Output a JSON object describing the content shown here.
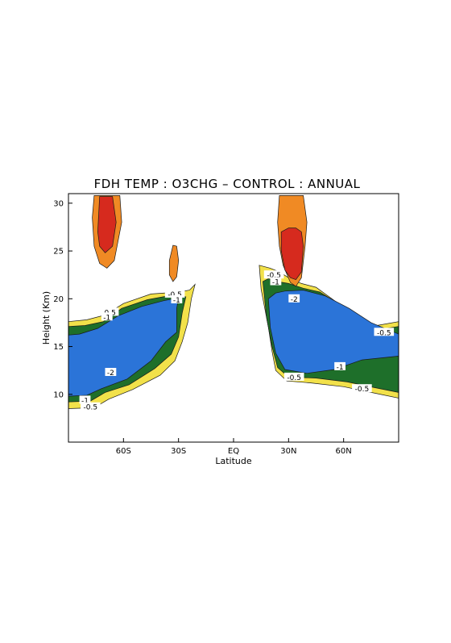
{
  "chart_data": {
    "type": "contour",
    "title": "FDH TEMP : O3CHG – CONTROL : ANNUAL",
    "xlabel": "Latitude",
    "ylabel": "Height (Km)",
    "xlim": [
      -90,
      90
    ],
    "ylim": [
      5,
      31
    ],
    "x_ticks": [
      {
        "value": -60,
        "label": "60S"
      },
      {
        "value": -30,
        "label": "30S"
      },
      {
        "value": 0,
        "label": "EQ"
      },
      {
        "value": 30,
        "label": "30N"
      },
      {
        "value": 60,
        "label": "60N"
      }
    ],
    "y_ticks": [
      {
        "value": 10,
        "label": "10"
      },
      {
        "value": 15,
        "label": "15"
      },
      {
        "value": 20,
        "label": "20"
      },
      {
        "value": 25,
        "label": "25"
      },
      {
        "value": 30,
        "label": "30"
      }
    ],
    "colors": {
      "yellow": "#f2e14a",
      "green": "#1e6f2a",
      "blue": "#2b74d8",
      "dark": "#0d1b2a",
      "orange": "#f08a24",
      "red": "#d62a1e",
      "contour": "#1a1a1a"
    },
    "regions": [
      {
        "name": "SH negative base",
        "level": -0.3,
        "color_key": "yellow",
        "points": [
          [
            -90,
            8.5
          ],
          [
            -76,
            8.6
          ],
          [
            -68,
            9.5
          ],
          [
            -55,
            10.5
          ],
          [
            -40,
            12
          ],
          [
            -32,
            13.5
          ],
          [
            -28,
            15.5
          ],
          [
            -25,
            17.5
          ],
          [
            -23,
            20
          ],
          [
            -21,
            21.5
          ],
          [
            -24,
            20.9
          ],
          [
            -30,
            20.7
          ],
          [
            -45,
            20.5
          ],
          [
            -60,
            19.5
          ],
          [
            -70,
            18.3
          ],
          [
            -80,
            17.8
          ],
          [
            -90,
            17.6
          ]
        ]
      },
      {
        "name": "SH -0.5",
        "level": -0.5,
        "color_key": "green",
        "points": [
          [
            -90,
            9.2
          ],
          [
            -78,
            9.3
          ],
          [
            -70,
            10.2
          ],
          [
            -57,
            11
          ],
          [
            -43,
            12.7
          ],
          [
            -34,
            14.2
          ],
          [
            -30,
            16
          ],
          [
            -28,
            18.5
          ],
          [
            -26,
            20.2
          ],
          [
            -33,
            20.4
          ],
          [
            -47,
            19.9
          ],
          [
            -61,
            19
          ],
          [
            -71,
            17.6
          ],
          [
            -81,
            17.2
          ],
          [
            -90,
            17.1
          ]
        ]
      },
      {
        "name": "SH -1",
        "level": -1,
        "color_key": "blue",
        "points": [
          [
            -90,
            9.8
          ],
          [
            -80,
            9.9
          ],
          [
            -72,
            10.6
          ],
          [
            -58,
            11.6
          ],
          [
            -45,
            13.5
          ],
          [
            -37,
            15.5
          ],
          [
            -31,
            16.5
          ],
          [
            -31,
            19
          ],
          [
            -30,
            20.1
          ],
          [
            -38,
            19.8
          ],
          [
            -50,
            19.2
          ],
          [
            -63,
            18.2
          ],
          [
            -74,
            16.9
          ],
          [
            -84,
            16.3
          ],
          [
            -90,
            16.2
          ]
        ]
      },
      {
        "name": "NH negative base",
        "level": -0.3,
        "color_key": "yellow",
        "points": [
          [
            14,
            23.5
          ],
          [
            15,
            21
          ],
          [
            19,
            17
          ],
          [
            21,
            14.5
          ],
          [
            23,
            12.5
          ],
          [
            29,
            11.4
          ],
          [
            42,
            11.2
          ],
          [
            60,
            10.8
          ],
          [
            75,
            10.2
          ],
          [
            90,
            9.6
          ],
          [
            90,
            17.6
          ],
          [
            78,
            17.2
          ],
          [
            65,
            18.2
          ],
          [
            55,
            19.8
          ],
          [
            45,
            21.2
          ],
          [
            37,
            21.6
          ],
          [
            30,
            22.2
          ],
          [
            25,
            22.8
          ],
          [
            20,
            23.2
          ]
        ]
      },
      {
        "name": "NH -0.5",
        "level": -0.5,
        "color_key": "green",
        "points": [
          [
            16,
            21.8
          ],
          [
            18,
            18
          ],
          [
            21,
            15
          ],
          [
            24,
            12.8
          ],
          [
            30,
            11.8
          ],
          [
            45,
            11.7
          ],
          [
            62,
            11.3
          ],
          [
            77,
            10.7
          ],
          [
            90,
            10.2
          ],
          [
            90,
            17.1
          ],
          [
            80,
            16.8
          ],
          [
            67,
            17.8
          ],
          [
            57,
            19.5
          ],
          [
            47,
            20.7
          ],
          [
            38,
            21.1
          ],
          [
            30,
            21.6
          ],
          [
            24,
            21.8
          ],
          [
            19,
            22.1
          ]
        ]
      },
      {
        "name": "NH -1",
        "level": -1,
        "color_key": "blue",
        "points": [
          [
            19,
            20
          ],
          [
            20,
            17
          ],
          [
            23,
            14.3
          ],
          [
            28,
            12.6
          ],
          [
            40,
            12.2
          ],
          [
            55,
            12.6
          ],
          [
            70,
            13.6
          ],
          [
            90,
            14
          ],
          [
            90,
            16.3
          ],
          [
            75,
            17.5
          ],
          [
            63,
            19
          ],
          [
            50,
            20.3
          ],
          [
            38,
            20.9
          ],
          [
            28,
            20.8
          ],
          [
            23,
            20.6
          ]
        ]
      },
      {
        "name": "SH upper warm",
        "level": 0.5,
        "color_key": "orange",
        "points": [
          [
            -77,
            28.5
          ],
          [
            -76,
            30.8
          ],
          [
            -62,
            30.8
          ],
          [
            -61,
            28
          ],
          [
            -63,
            26
          ],
          [
            -65,
            24
          ],
          [
            -69,
            23.2
          ],
          [
            -73,
            23.7
          ],
          [
            -76,
            25.5
          ]
        ]
      },
      {
        "name": "SH upper warm core",
        "level": 1,
        "color_key": "red",
        "points": [
          [
            -74,
            27
          ],
          [
            -73,
            30.7
          ],
          [
            -66,
            30.7
          ],
          [
            -64,
            28
          ],
          [
            -66,
            25.5
          ],
          [
            -70,
            24.8
          ],
          [
            -73,
            25.5
          ]
        ]
      },
      {
        "name": "30S warm blob",
        "level": 0.5,
        "color_key": "orange",
        "points": [
          [
            -35,
            24
          ],
          [
            -33,
            25.6
          ],
          [
            -31,
            25.5
          ],
          [
            -30,
            24
          ],
          [
            -31,
            22.3
          ],
          [
            -33,
            21.8
          ],
          [
            -35,
            22.5
          ]
        ]
      },
      {
        "name": "NH upper warm",
        "level": 0.5,
        "color_key": "orange",
        "points": [
          [
            24,
            28
          ],
          [
            25,
            30.8
          ],
          [
            38,
            30.8
          ],
          [
            40,
            28
          ],
          [
            39,
            25.5
          ],
          [
            37,
            22.2
          ],
          [
            34,
            21.3
          ],
          [
            31,
            21.7
          ],
          [
            27,
            23.5
          ],
          [
            25,
            25.5
          ]
        ]
      },
      {
        "name": "NH upper warm core",
        "level": 1,
        "color_key": "red",
        "points": [
          [
            26,
            27
          ],
          [
            26,
            25
          ],
          [
            28,
            23
          ],
          [
            31,
            22.2
          ],
          [
            34,
            22
          ],
          [
            37,
            22.8
          ],
          [
            38,
            25.5
          ],
          [
            37,
            27
          ],
          [
            34,
            27.4
          ],
          [
            30,
            27.4
          ]
        ]
      }
    ],
    "contour_labels": [
      {
        "x": -68,
        "y": 18.6,
        "text": "-0.5"
      },
      {
        "x": -69,
        "y": 18.1,
        "text": "-1"
      },
      {
        "x": -67,
        "y": 12.3,
        "text": "-2"
      },
      {
        "x": -81,
        "y": 9.4,
        "text": "-1"
      },
      {
        "x": -78,
        "y": 8.7,
        "text": "-0.5"
      },
      {
        "x": -32,
        "y": 20.5,
        "text": "-0.5"
      },
      {
        "x": -31,
        "y": 19.9,
        "text": "-1"
      },
      {
        "x": 22,
        "y": 22.5,
        "text": "-0.5"
      },
      {
        "x": 23,
        "y": 21.8,
        "text": "-1"
      },
      {
        "x": 33,
        "y": 20.0,
        "text": "-2"
      },
      {
        "x": 33,
        "y": 11.8,
        "text": "-0.5"
      },
      {
        "x": 58,
        "y": 12.9,
        "text": "-1"
      },
      {
        "x": 70,
        "y": 10.6,
        "text": "-0.5"
      },
      {
        "x": 82,
        "y": 16.5,
        "text": "-0.5"
      }
    ]
  }
}
